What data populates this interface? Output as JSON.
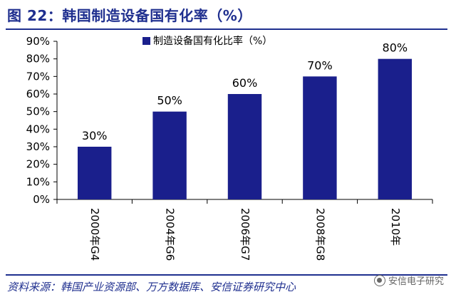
{
  "figure": {
    "title": "图 22：韩国制造设备国有化率（%）",
    "source": "资料来源：韩国产业资源部、万方数据库、安信证券研究中心",
    "watermark": "安信电子研究"
  },
  "colors": {
    "bar": "#1a1f8c",
    "title": "#1f2f8f",
    "axis": "#000000"
  },
  "chart_data": {
    "type": "bar",
    "categories": [
      "2000年G4",
      "2004年G6",
      "2006年G7",
      "2008年G8",
      "2010年"
    ],
    "series": [
      {
        "name": "制造设备国有化比率（%）",
        "values": [
          30,
          50,
          60,
          70,
          80
        ]
      }
    ],
    "data_labels": [
      "30%",
      "50%",
      "60%",
      "70%",
      "80%"
    ],
    "ylim": [
      0,
      90
    ],
    "yticks": [
      "0%",
      "10%",
      "20%",
      "30%",
      "40%",
      "50%",
      "60%",
      "70%",
      "80%",
      "90%"
    ],
    "xlabel": "",
    "ylabel": "",
    "grid": false,
    "legend_position": "top-center"
  }
}
